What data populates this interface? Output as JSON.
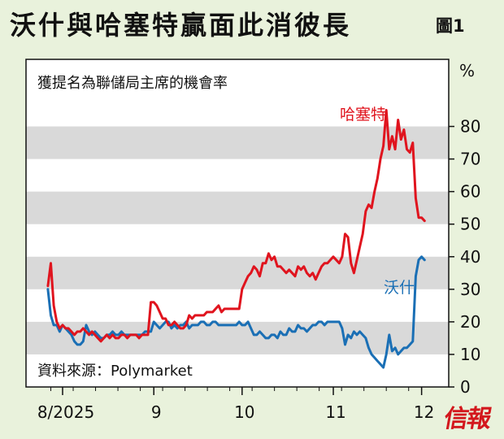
{
  "title": "沃什與哈塞特贏面此消彼長",
  "figure_label": "圖1",
  "logo_text": "信報",
  "chart_data": {
    "type": "line",
    "title": "",
    "subtitle": "獲提名為聯儲局主席的機會率",
    "source": "資料來源：Polymarket",
    "y_unit": "%",
    "ylim": [
      0,
      100
    ],
    "yticks": [
      0,
      10,
      20,
      30,
      40,
      50,
      60,
      70,
      80
    ],
    "xticks": [
      {
        "x": 0,
        "label": "8/2025"
      },
      {
        "x": 31,
        "label": "9"
      },
      {
        "x": 61,
        "label": "10"
      },
      {
        "x": 92,
        "label": "11"
      },
      {
        "x": 122,
        "label": "12"
      }
    ],
    "grid": "alternating horizontal bands",
    "colors": {
      "hassett": "#e0141e",
      "warsh": "#1a6fb5",
      "band": "#d9d9d9"
    },
    "series": [
      {
        "name": "哈塞特",
        "color": "#e0141e",
        "points": [
          [
            -5,
            31
          ],
          [
            -4,
            38
          ],
          [
            -3,
            25
          ],
          [
            -2,
            20
          ],
          [
            -1,
            18
          ],
          [
            0,
            19
          ],
          [
            1,
            18
          ],
          [
            2,
            18
          ],
          [
            3,
            17
          ],
          [
            4,
            16
          ],
          [
            5,
            17
          ],
          [
            6,
            17
          ],
          [
            7,
            18
          ],
          [
            8,
            17
          ],
          [
            9,
            16
          ],
          [
            10,
            17
          ],
          [
            11,
            16
          ],
          [
            12,
            15
          ],
          [
            13,
            14
          ],
          [
            14,
            15
          ],
          [
            15,
            16
          ],
          [
            16,
            15
          ],
          [
            17,
            16
          ],
          [
            18,
            15
          ],
          [
            19,
            15
          ],
          [
            20,
            16
          ],
          [
            21,
            16
          ],
          [
            22,
            15
          ],
          [
            23,
            16
          ],
          [
            24,
            16
          ],
          [
            25,
            16
          ],
          [
            26,
            15
          ],
          [
            27,
            16
          ],
          [
            28,
            16
          ],
          [
            29,
            16
          ],
          [
            30,
            26
          ],
          [
            31,
            26
          ],
          [
            32,
            25
          ],
          [
            33,
            23
          ],
          [
            34,
            21
          ],
          [
            35,
            21
          ],
          [
            36,
            19
          ],
          [
            37,
            19
          ],
          [
            38,
            20
          ],
          [
            39,
            19
          ],
          [
            40,
            18
          ],
          [
            41,
            18
          ],
          [
            42,
            19
          ],
          [
            43,
            22
          ],
          [
            44,
            21
          ],
          [
            45,
            22
          ],
          [
            46,
            22
          ],
          [
            47,
            22
          ],
          [
            48,
            22
          ],
          [
            49,
            23
          ],
          [
            50,
            23
          ],
          [
            51,
            23
          ],
          [
            52,
            24
          ],
          [
            53,
            25
          ],
          [
            54,
            23
          ],
          [
            55,
            24
          ],
          [
            56,
            24
          ],
          [
            57,
            24
          ],
          [
            58,
            24
          ],
          [
            59,
            24
          ],
          [
            60,
            24
          ],
          [
            61,
            30
          ],
          [
            62,
            32
          ],
          [
            63,
            34
          ],
          [
            64,
            35
          ],
          [
            65,
            37
          ],
          [
            66,
            36
          ],
          [
            67,
            34
          ],
          [
            68,
            38
          ],
          [
            69,
            38
          ],
          [
            70,
            41
          ],
          [
            71,
            39
          ],
          [
            72,
            40
          ],
          [
            73,
            37
          ],
          [
            74,
            37
          ],
          [
            75,
            36
          ],
          [
            76,
            35
          ],
          [
            77,
            36
          ],
          [
            78,
            35
          ],
          [
            79,
            34
          ],
          [
            80,
            37
          ],
          [
            81,
            36
          ],
          [
            82,
            37
          ],
          [
            83,
            35
          ],
          [
            84,
            34
          ],
          [
            85,
            35
          ],
          [
            86,
            33
          ],
          [
            87,
            35
          ],
          [
            88,
            37
          ],
          [
            89,
            38
          ],
          [
            90,
            38
          ],
          [
            91,
            39
          ],
          [
            92,
            40
          ],
          [
            93,
            39
          ],
          [
            94,
            38
          ],
          [
            95,
            40
          ],
          [
            96,
            47
          ],
          [
            97,
            46
          ],
          [
            98,
            38
          ],
          [
            99,
            35
          ],
          [
            100,
            39
          ],
          [
            101,
            43
          ],
          [
            102,
            47
          ],
          [
            103,
            54
          ],
          [
            104,
            56
          ],
          [
            105,
            55
          ],
          [
            106,
            60
          ],
          [
            107,
            64
          ],
          [
            108,
            70
          ],
          [
            109,
            74
          ],
          [
            110,
            85
          ],
          [
            111,
            73
          ],
          [
            112,
            77
          ],
          [
            113,
            73
          ],
          [
            114,
            82
          ],
          [
            115,
            76
          ],
          [
            116,
            79
          ],
          [
            117,
            73
          ],
          [
            118,
            72
          ],
          [
            119,
            75
          ],
          [
            120,
            58
          ],
          [
            121,
            52
          ],
          [
            122,
            52
          ],
          [
            123,
            51
          ]
        ]
      },
      {
        "name": "沃什",
        "color": "#1a6fb5",
        "points": [
          [
            -5,
            30
          ],
          [
            -4,
            22
          ],
          [
            -3,
            19
          ],
          [
            -2,
            19
          ],
          [
            -1,
            17
          ],
          [
            0,
            19
          ],
          [
            1,
            18
          ],
          [
            2,
            17
          ],
          [
            3,
            16
          ],
          [
            4,
            14
          ],
          [
            5,
            13
          ],
          [
            6,
            13
          ],
          [
            7,
            14
          ],
          [
            8,
            19
          ],
          [
            9,
            17
          ],
          [
            10,
            16
          ],
          [
            11,
            17
          ],
          [
            12,
            16
          ],
          [
            13,
            15
          ],
          [
            14,
            15
          ],
          [
            15,
            16
          ],
          [
            16,
            16
          ],
          [
            17,
            17
          ],
          [
            18,
            16
          ],
          [
            19,
            16
          ],
          [
            20,
            17
          ],
          [
            21,
            16
          ],
          [
            22,
            16
          ],
          [
            23,
            16
          ],
          [
            24,
            16
          ],
          [
            25,
            16
          ],
          [
            26,
            16
          ],
          [
            27,
            16
          ],
          [
            28,
            17
          ],
          [
            29,
            17
          ],
          [
            30,
            17
          ],
          [
            31,
            20
          ],
          [
            32,
            19
          ],
          [
            33,
            18
          ],
          [
            34,
            19
          ],
          [
            35,
            20
          ],
          [
            36,
            20
          ],
          [
            37,
            18
          ],
          [
            38,
            19
          ],
          [
            39,
            18
          ],
          [
            40,
            19
          ],
          [
            41,
            19
          ],
          [
            42,
            20
          ],
          [
            43,
            18
          ],
          [
            44,
            19
          ],
          [
            45,
            19
          ],
          [
            46,
            19
          ],
          [
            47,
            20
          ],
          [
            48,
            20
          ],
          [
            49,
            19
          ],
          [
            50,
            19
          ],
          [
            51,
            20
          ],
          [
            52,
            20
          ],
          [
            53,
            19
          ],
          [
            54,
            19
          ],
          [
            55,
            19
          ],
          [
            56,
            19
          ],
          [
            57,
            19
          ],
          [
            58,
            19
          ],
          [
            59,
            19
          ],
          [
            60,
            20
          ],
          [
            61,
            19
          ],
          [
            62,
            19
          ],
          [
            63,
            20
          ],
          [
            64,
            18
          ],
          [
            65,
            16
          ],
          [
            66,
            16
          ],
          [
            67,
            17
          ],
          [
            68,
            16
          ],
          [
            69,
            15
          ],
          [
            70,
            15
          ],
          [
            71,
            16
          ],
          [
            72,
            16
          ],
          [
            73,
            15
          ],
          [
            74,
            17
          ],
          [
            75,
            16
          ],
          [
            76,
            16
          ],
          [
            77,
            18
          ],
          [
            78,
            17
          ],
          [
            79,
            17
          ],
          [
            80,
            19
          ],
          [
            81,
            18
          ],
          [
            82,
            18
          ],
          [
            83,
            17
          ],
          [
            84,
            18
          ],
          [
            85,
            19
          ],
          [
            86,
            19
          ],
          [
            87,
            20
          ],
          [
            88,
            20
          ],
          [
            89,
            19
          ],
          [
            90,
            20
          ],
          [
            91,
            20
          ],
          [
            92,
            20
          ],
          [
            93,
            20
          ],
          [
            94,
            20
          ],
          [
            95,
            18
          ],
          [
            96,
            13
          ],
          [
            97,
            16
          ],
          [
            98,
            15
          ],
          [
            99,
            17
          ],
          [
            100,
            16
          ],
          [
            101,
            17
          ],
          [
            102,
            16
          ],
          [
            103,
            15
          ],
          [
            104,
            12
          ],
          [
            105,
            10
          ],
          [
            106,
            9
          ],
          [
            107,
            8
          ],
          [
            108,
            7
          ],
          [
            109,
            6
          ],
          [
            110,
            10
          ],
          [
            111,
            16
          ],
          [
            112,
            11
          ],
          [
            113,
            12
          ],
          [
            114,
            10
          ],
          [
            115,
            11
          ],
          [
            116,
            12
          ],
          [
            117,
            12
          ],
          [
            118,
            13
          ],
          [
            119,
            14
          ],
          [
            120,
            34
          ],
          [
            121,
            39
          ],
          [
            122,
            40
          ],
          [
            123,
            39
          ]
        ]
      }
    ]
  }
}
